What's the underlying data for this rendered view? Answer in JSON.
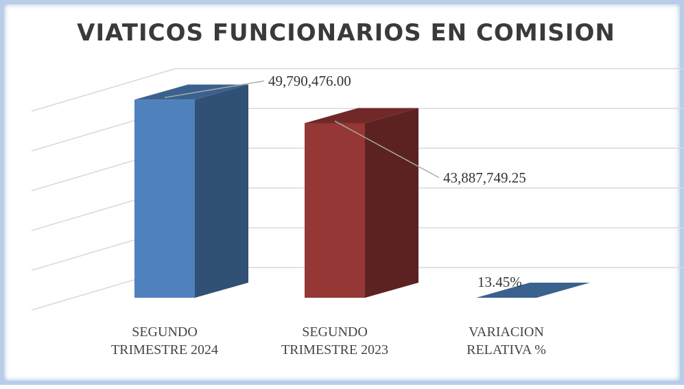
{
  "chart_data": {
    "type": "bar3d",
    "title": "VIATICOS FUNCIONARIOS EN COMISION",
    "categories": [
      "SEGUNDO TRIMESTRE 2024",
      "SEGUNDO TRIMESTRE 2023",
      "VARIACION RELATIVA %"
    ],
    "values": [
      49790476.0,
      43887749.25,
      13.45
    ],
    "value_labels": [
      "49,790,476.00",
      "43,887,749.25",
      "13.45%"
    ],
    "colors": [
      "#4f81bd",
      "#953735",
      "#4f81bd"
    ],
    "ylim": [
      0,
      50000000
    ],
    "yticks": [
      0,
      10000000,
      20000000,
      30000000,
      40000000,
      50000000
    ],
    "grid": true
  }
}
